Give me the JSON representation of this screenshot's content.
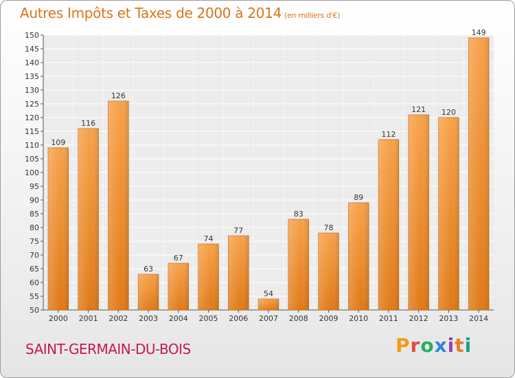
{
  "header": {
    "title": "Autres Impôts et Taxes de 2000 à 2014",
    "unit": "(en milliers d'€)"
  },
  "footer": {
    "commune": "SAINT-GERMAIN-DU-BOIS",
    "logo": "Proxiti"
  },
  "colors": {
    "title": "#d9751b",
    "commune": "#c2185b",
    "bar_top": "#f7a24a",
    "bar_bottom": "#e07a18",
    "bar_edge": "#b85d0c"
  },
  "chart_data": {
    "type": "bar",
    "title": "Autres Impôts et Taxes de 2000 à 2014",
    "subtitle": "(en milliers d'€)",
    "categories": [
      "2000",
      "2001",
      "2002",
      "2003",
      "2004",
      "2005",
      "2006",
      "2007",
      "2008",
      "2009",
      "2010",
      "2011",
      "2012",
      "2013",
      "2014"
    ],
    "values": [
      109,
      116,
      126,
      63,
      67,
      74,
      77,
      54,
      83,
      78,
      89,
      112,
      121,
      120,
      149
    ],
    "ylim": [
      50,
      150
    ],
    "yticks": [
      50,
      55,
      60,
      65,
      70,
      75,
      80,
      85,
      90,
      95,
      100,
      105,
      110,
      115,
      120,
      125,
      130,
      135,
      140,
      145,
      150
    ],
    "grid": true,
    "data_labels": true
  }
}
